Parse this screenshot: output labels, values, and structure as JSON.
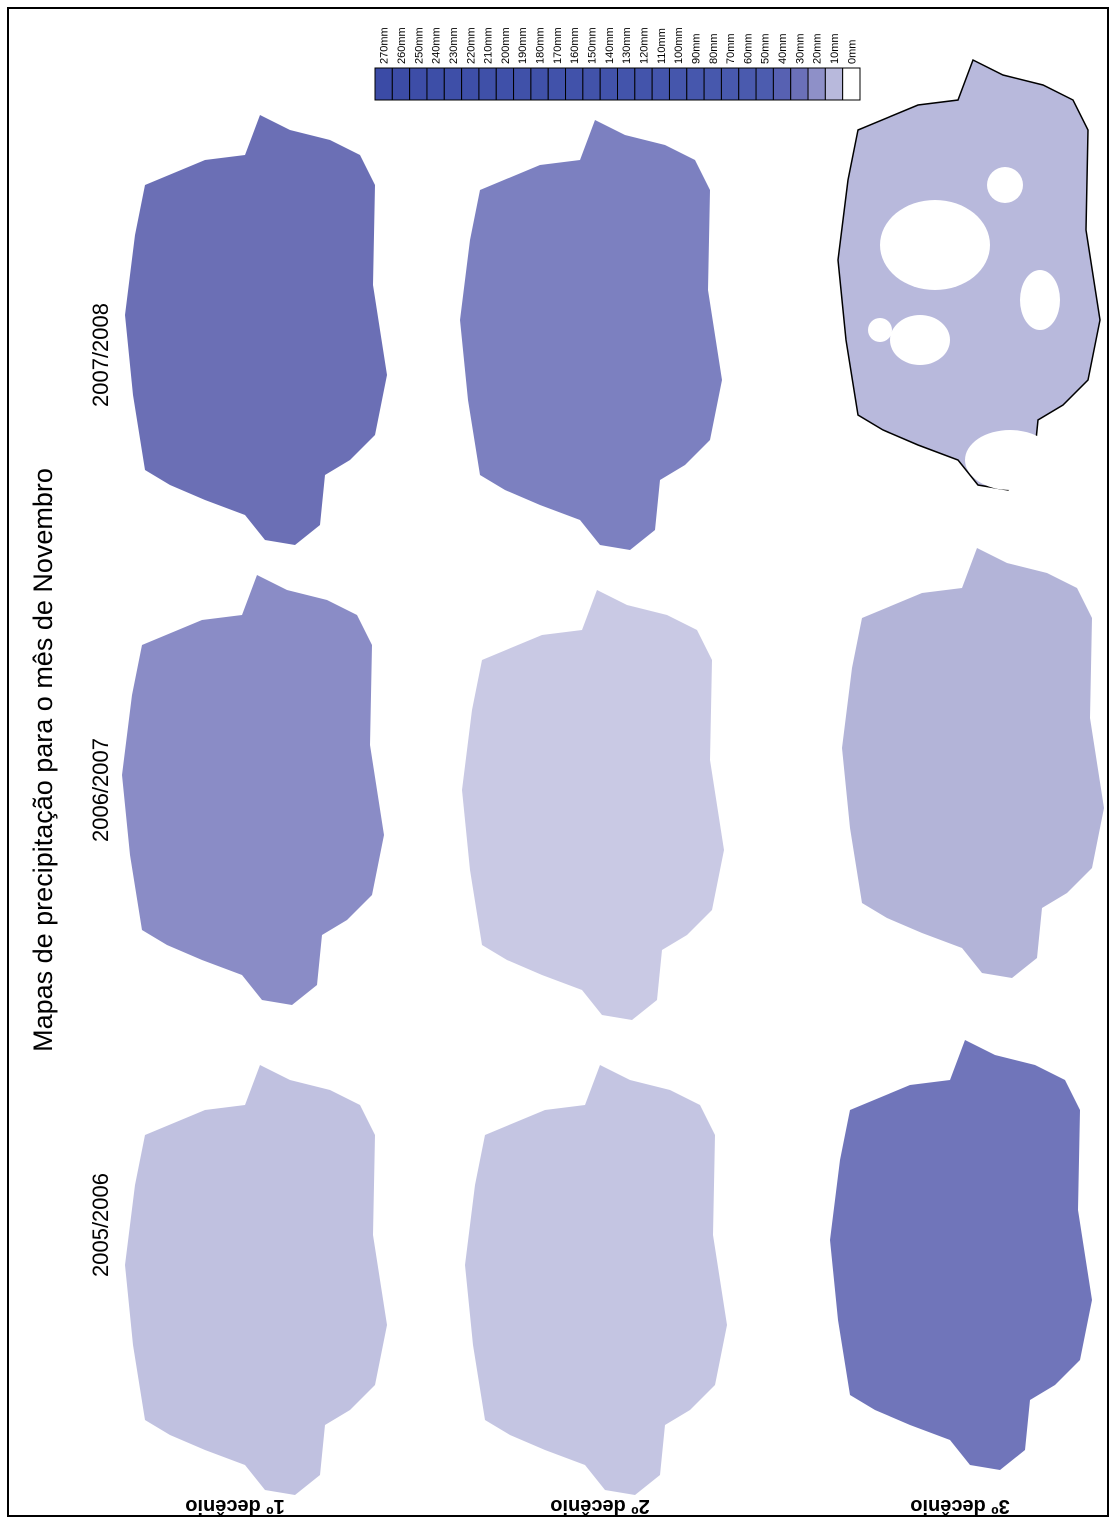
{
  "title": "Mapas de precipitação para o mês de Novembro",
  "columns": [
    "2007/2008",
    "2006/2007",
    "2005/2006"
  ],
  "rows": [
    "1º decênio",
    "2º decênio",
    "3º decênio"
  ],
  "legend": {
    "labels": [
      "270mm",
      "260mm",
      "250mm",
      "240mm",
      "230mm",
      "220mm",
      "210mm",
      "200mm",
      "190mm",
      "180mm",
      "170mm",
      "160mm",
      "150mm",
      "140mm",
      "130mm",
      "120mm",
      "110mm",
      "100mm",
      "90mm",
      "80mm",
      "70mm",
      "60mm",
      "50mm",
      "40mm",
      "30mm",
      "20mm",
      "10mm",
      "0mm"
    ],
    "colors": [
      "#3b4ba6",
      "#3c4ca6",
      "#3d4da7",
      "#3d4ea7",
      "#3e4fa8",
      "#3e4fa8",
      "#3f50a8",
      "#3f50a9",
      "#4051a9",
      "#4051a9",
      "#4152aa",
      "#4152aa",
      "#4253aa",
      "#4253ab",
      "#4354ab",
      "#4354ab",
      "#4455ac",
      "#4556ac",
      "#4657ad",
      "#4758ad",
      "#4859ae",
      "#4a5aae",
      "#4c5caf",
      "#5761b2",
      "#6b70b8",
      "#8e90c8",
      "#b8b9dc",
      "#ffffff"
    ]
  }
}
